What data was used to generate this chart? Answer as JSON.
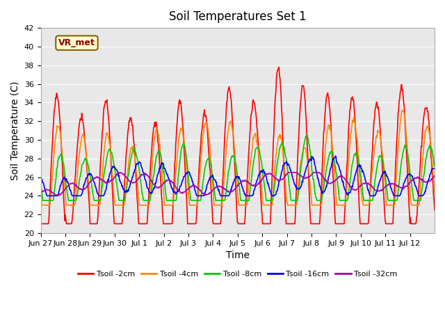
{
  "title": "Soil Temperatures Set 1",
  "xlabel": "Time",
  "ylabel": "Soil Temperature (C)",
  "ylim": [
    20,
    42
  ],
  "yticks": [
    20,
    22,
    24,
    26,
    28,
    30,
    32,
    34,
    36,
    38,
    40,
    42
  ],
  "xtick_labels": [
    "Jun 27",
    "Jun 28",
    "Jun 29",
    "Jun 30",
    "Jul 1",
    "Jul 2",
    "Jul 3",
    "Jul 4",
    "Jul 5",
    "Jul 6",
    "Jul 7",
    "Jul 8",
    "Jul 9",
    "Jul 10",
    "Jul 11",
    "Jul 12"
  ],
  "legend_labels": [
    "Tsoil -2cm",
    "Tsoil -4cm",
    "Tsoil -8cm",
    "Tsoil -16cm",
    "Tsoil -32cm"
  ],
  "colors": [
    "#ff0000",
    "#ff8800",
    "#00cc00",
    "#0000ff",
    "#aa00aa"
  ],
  "line_widths": [
    1.2,
    1.2,
    1.2,
    1.2,
    1.2
  ],
  "annotation_text": "VR_met",
  "plot_bg_color": "#e8e8e8",
  "title_fontsize": 12,
  "axis_fontsize": 10,
  "tick_fontsize": 8,
  "n_days": 16,
  "points_per_day": 48
}
